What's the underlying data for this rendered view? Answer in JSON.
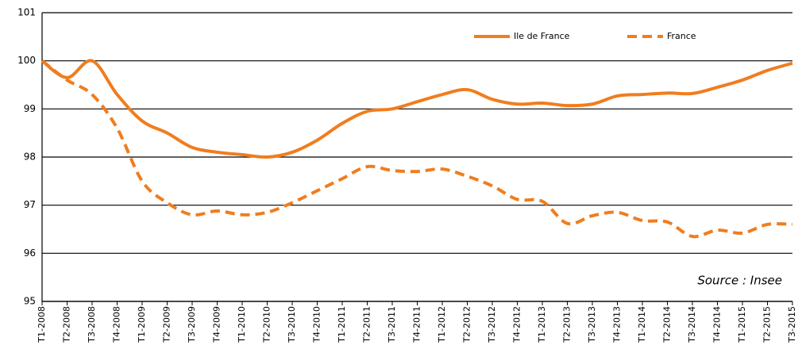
{
  "chart_data": {
    "type": "line",
    "categories": [
      "T1-2008",
      "T2-2008",
      "T3-2008",
      "T4-2008",
      "T1-2009",
      "T2-2009",
      "T3-2009",
      "T4-2009",
      "T1-2010",
      "T2-2010",
      "T3-2010",
      "T4-2010",
      "T1-2011",
      "T2-2011",
      "T3-2011",
      "T4-2011",
      "T1-2012",
      "T2-2012",
      "T3-2012",
      "T4-2012",
      "T1-2013",
      "T2-2013",
      "T3-2013",
      "T4-2013",
      "T1-2014",
      "T2-2014",
      "T3-2014",
      "T4-2014",
      "T1-2015",
      "T2-2015",
      "T3-2015"
    ],
    "series": [
      {
        "name": "Ile de France",
        "color": "#f07d1e",
        "style": "solid",
        "values": [
          100,
          99.65,
          100.0,
          99.3,
          98.75,
          98.5,
          98.2,
          98.1,
          98.05,
          98.0,
          98.1,
          98.35,
          98.7,
          98.95,
          99.0,
          99.15,
          99.3,
          99.4,
          99.2,
          99.1,
          99.12,
          99.07,
          99.1,
          99.27,
          99.3,
          99.33,
          99.32,
          99.45,
          99.6,
          99.8,
          99.95
        ]
      },
      {
        "name": "France",
        "color": "#f07d1e",
        "style": "dashed",
        "values": [
          100,
          99.6,
          99.3,
          98.6,
          97.5,
          97.05,
          96.8,
          96.88,
          96.8,
          96.85,
          97.05,
          97.3,
          97.55,
          97.8,
          97.72,
          97.7,
          97.75,
          97.6,
          97.4,
          97.12,
          97.08,
          96.62,
          96.78,
          96.85,
          96.68,
          96.65,
          96.35,
          96.48,
          96.42,
          96.6,
          96.6
        ]
      }
    ],
    "ylim": [
      95,
      101
    ],
    "yticks": [
      95,
      96,
      97,
      98,
      99,
      100,
      101
    ],
    "grid": true,
    "legend": "top-right",
    "annotation": "Source : Insee"
  }
}
